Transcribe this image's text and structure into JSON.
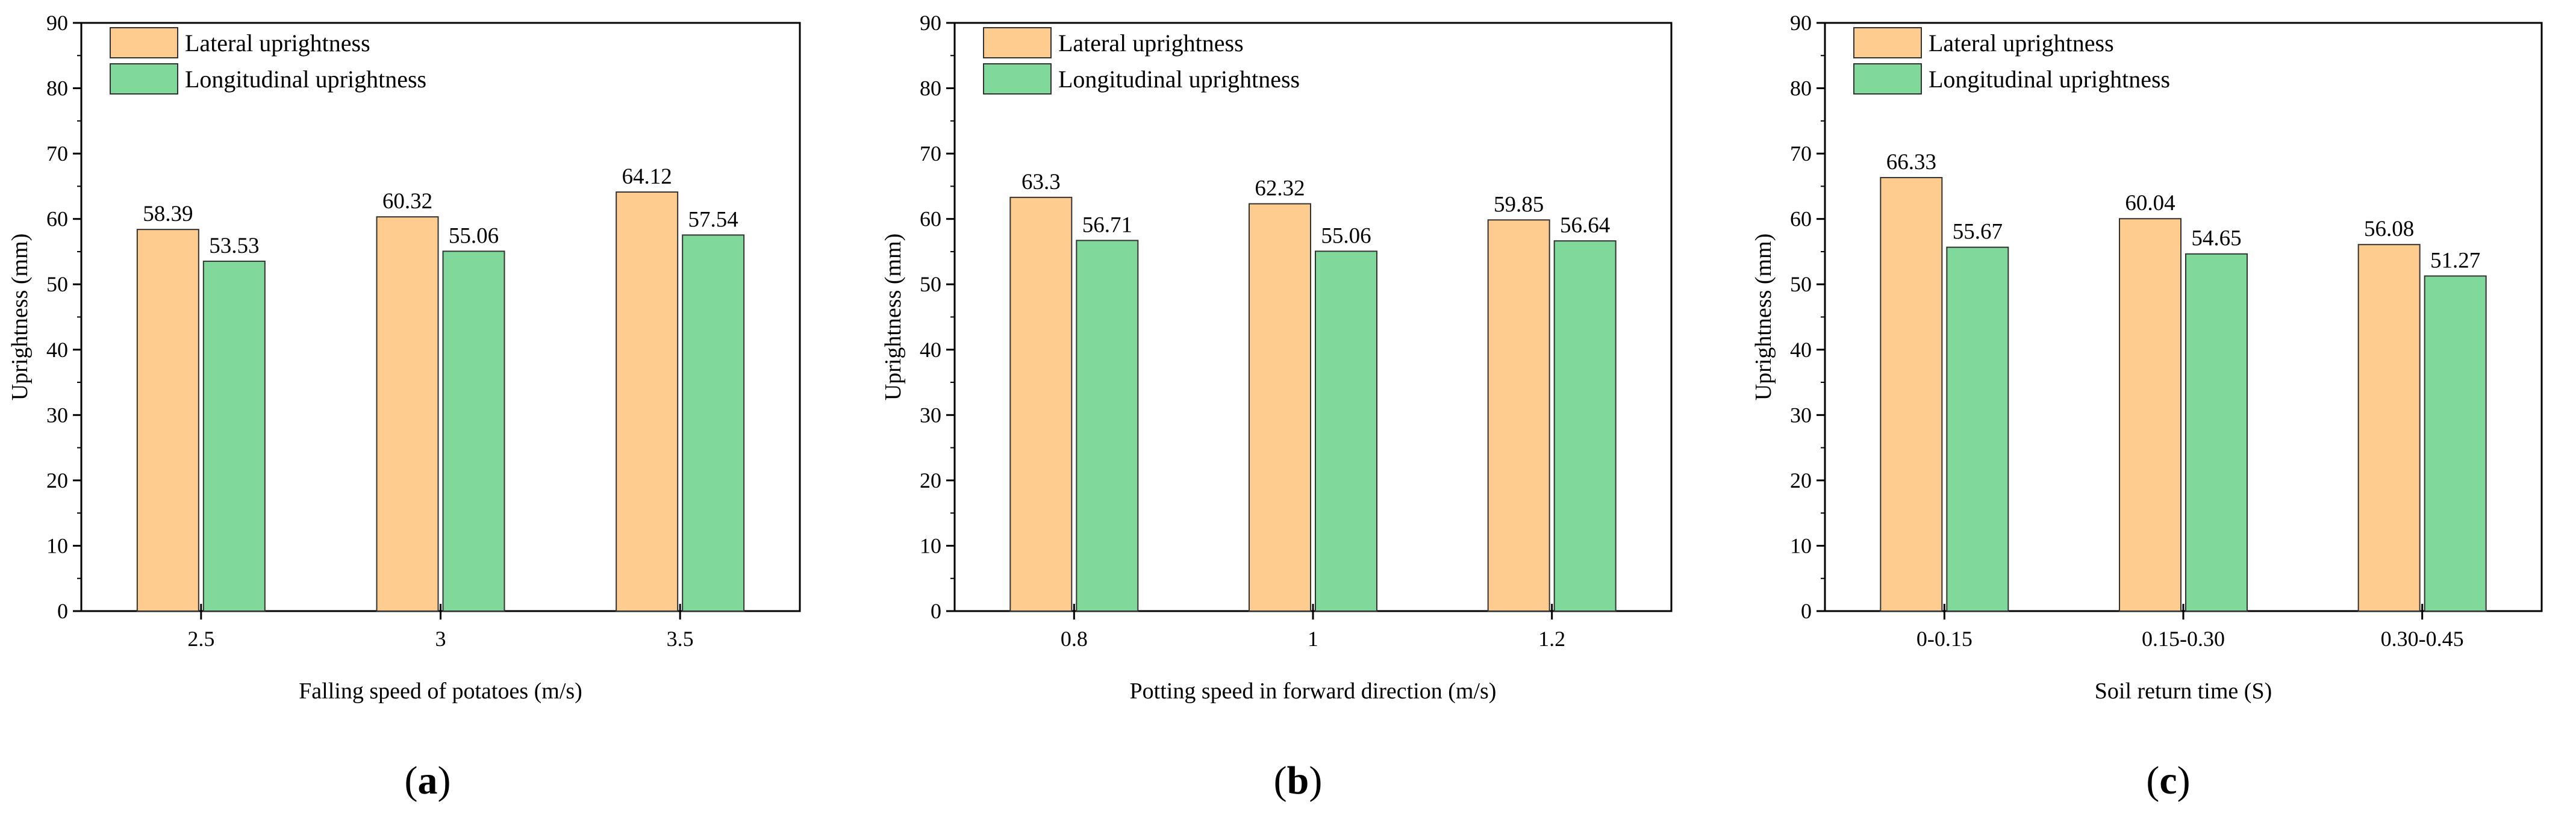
{
  "colors": {
    "lateral": "#FFCC8F",
    "longitudinal": "#80D89A",
    "stroke": "#333333"
  },
  "chart_data": [
    {
      "type": "bar",
      "panel": "a",
      "panel_label_open": "(",
      "panel_label_close": ")",
      "categories": [
        "2.5",
        "3",
        "3.5"
      ],
      "series": [
        {
          "name": "Lateral uprightness",
          "values": [
            58.39,
            60.32,
            64.12
          ],
          "labels": [
            "58.39",
            "60.32",
            "64.12"
          ]
        },
        {
          "name": "Longitudinal uprightness",
          "values": [
            53.53,
            55.06,
            57.54
          ],
          "labels": [
            "53.53",
            "55.06",
            "57.54"
          ]
        }
      ],
      "xlabel": "Falling speed of potatoes (m/s)",
      "ylabel": "Uprightness (mm)",
      "ylim": [
        0,
        90
      ],
      "yticks": [
        "0",
        "10",
        "20",
        "30",
        "40",
        "50",
        "60",
        "70",
        "80",
        "90"
      ],
      "legend": "top-left"
    },
    {
      "type": "bar",
      "panel": "b",
      "panel_label_open": "(",
      "panel_label_close": ")",
      "categories": [
        "0.8",
        "1",
        "1.2"
      ],
      "series": [
        {
          "name": "Lateral uprightness",
          "values": [
            63.3,
            62.32,
            59.85
          ],
          "labels": [
            "63.3",
            "62.32",
            "59.85"
          ]
        },
        {
          "name": "Longitudinal uprightness",
          "values": [
            56.71,
            55.06,
            56.64
          ],
          "labels": [
            "56.71",
            "55.06",
            "56.64"
          ]
        }
      ],
      "xlabel": "Potting speed in forward direction (m/s)",
      "ylabel": "Uprightness (mm)",
      "ylim": [
        0,
        90
      ],
      "yticks": [
        "0",
        "10",
        "20",
        "30",
        "40",
        "50",
        "60",
        "70",
        "80",
        "90"
      ],
      "legend": "top-left"
    },
    {
      "type": "bar",
      "panel": "c",
      "panel_label_open": "(",
      "panel_label_close": ")",
      "categories": [
        "0-0.15",
        "0.15-0.30",
        "0.30-0.45"
      ],
      "series": [
        {
          "name": "Lateral uprightness",
          "values": [
            66.33,
            60.04,
            56.08
          ],
          "labels": [
            "66.33",
            "60.04",
            "56.08"
          ]
        },
        {
          "name": "Longitudinal uprightness",
          "values": [
            55.67,
            54.65,
            51.27
          ],
          "labels": [
            "55.67",
            "54.65",
            "51.27"
          ]
        }
      ],
      "xlabel": "Soil return time (S)",
      "ylabel": "Uprightness (mm)",
      "ylim": [
        0,
        90
      ],
      "yticks": [
        "0",
        "10",
        "20",
        "30",
        "40",
        "50",
        "60",
        "70",
        "80",
        "90"
      ],
      "legend": "top-left"
    }
  ]
}
